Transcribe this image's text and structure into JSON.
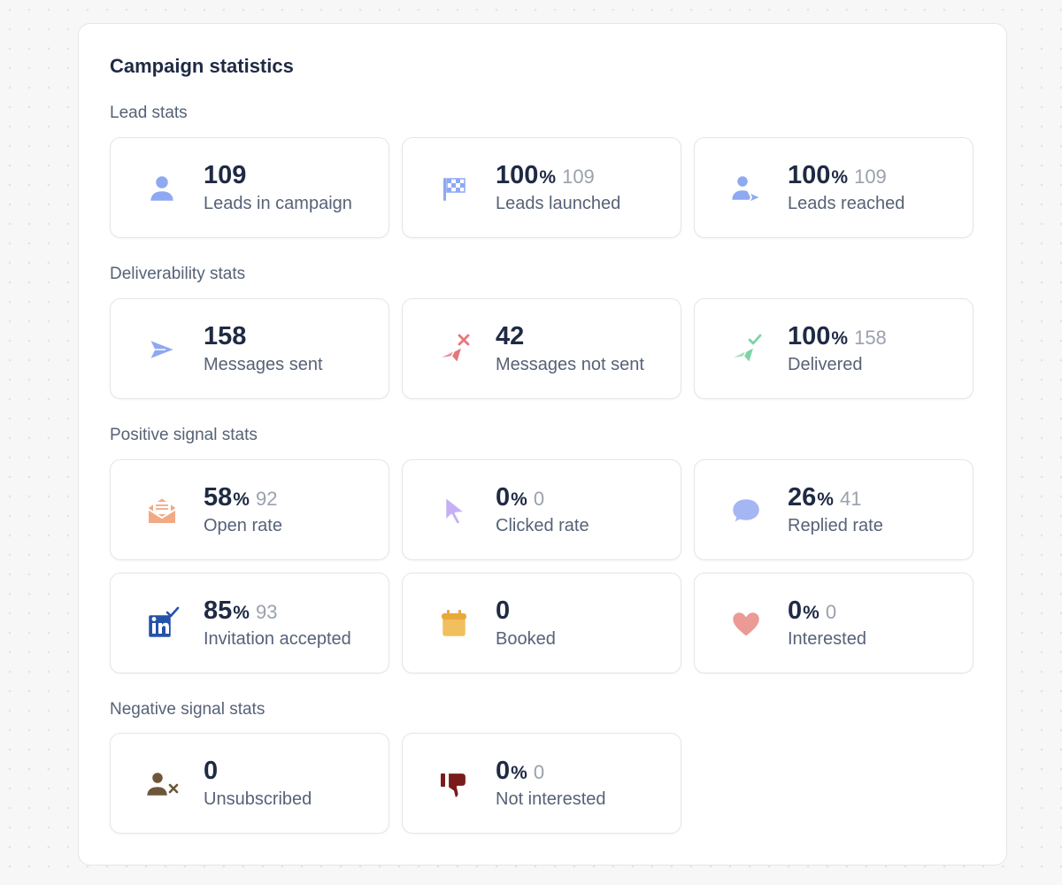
{
  "panel": {
    "title": "Campaign statistics"
  },
  "sections": [
    {
      "label": "Lead stats",
      "cards": [
        {
          "icon": "person-icon",
          "value": "109",
          "percent": "",
          "count": "",
          "label": "Leads in campaign"
        },
        {
          "icon": "checkered-flag-icon",
          "value": "100",
          "percent": "%",
          "count": "109",
          "label": "Leads launched"
        },
        {
          "icon": "person-arrow-icon",
          "value": "100",
          "percent": "%",
          "count": "109",
          "label": "Leads reached"
        }
      ]
    },
    {
      "label": "Deliverability stats",
      "cards": [
        {
          "icon": "paper-plane-icon",
          "value": "158",
          "percent": "",
          "count": "",
          "label": "Messages sent"
        },
        {
          "icon": "paper-plane-failed-icon",
          "value": "42",
          "percent": "",
          "count": "",
          "label": "Messages not sent"
        },
        {
          "icon": "paper-plane-check-icon",
          "value": "100",
          "percent": "%",
          "count": "158",
          "label": "Delivered"
        }
      ]
    },
    {
      "label": "Positive signal stats",
      "cards": [
        {
          "icon": "open-envelope-icon",
          "value": "58",
          "percent": "%",
          "count": "92",
          "label": "Open rate"
        },
        {
          "icon": "cursor-icon",
          "value": "0",
          "percent": "%",
          "count": "0",
          "label": "Clicked rate"
        },
        {
          "icon": "chat-bubble-icon",
          "value": "26",
          "percent": "%",
          "count": "41",
          "label": "Replied rate"
        },
        {
          "icon": "linkedin-check-icon",
          "value": "85",
          "percent": "%",
          "count": "93",
          "label": "Invitation accepted"
        },
        {
          "icon": "calendar-icon",
          "value": "0",
          "percent": "",
          "count": "",
          "label": "Booked"
        },
        {
          "icon": "heart-icon",
          "value": "0",
          "percent": "%",
          "count": "0",
          "label": "Interested"
        }
      ]
    },
    {
      "label": "Negative signal stats",
      "cards": [
        {
          "icon": "person-x-icon",
          "value": "0",
          "percent": "",
          "count": "",
          "label": "Unsubscribed"
        },
        {
          "icon": "thumbs-down-icon",
          "value": "0",
          "percent": "%",
          "count": "0",
          "label": "Not interested"
        }
      ]
    }
  ],
  "colors": {
    "person": "#8ea9f2",
    "flag": "#8ea9f2",
    "plane_sent": "#8ea9f2",
    "plane_failed": "#e5777a",
    "plane_delivered": "#7ed3a6",
    "envelope": "#f1aa85",
    "cursor": "#c5b0f5",
    "chat": "#a6b6f3",
    "linkedin": "#2553a8",
    "calendar": "#f2bf5e",
    "heart": "#ec9a96",
    "unsubscribe": "#6e5638",
    "thumbs_down": "#7a1b1b"
  }
}
